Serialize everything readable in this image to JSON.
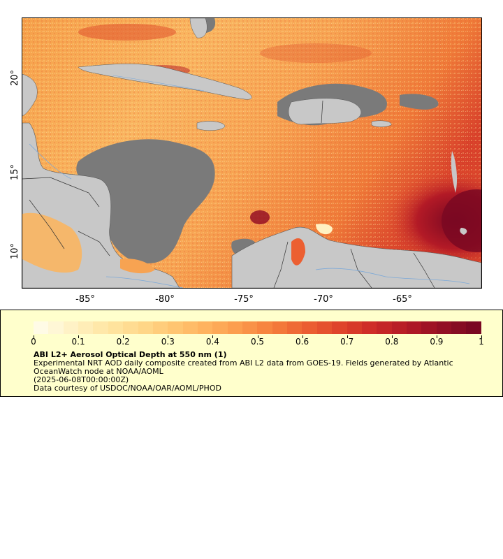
{
  "map": {
    "x_axis_ticks": [
      "-85°",
      "-80°",
      "-75°",
      "-70°",
      "-65°"
    ],
    "y_axis_ticks": [
      "20°",
      "15°",
      "10°"
    ],
    "colors": {
      "land": "#c8c8c8",
      "no_data": "#7a7a7a",
      "rivers": "#7ba8d8",
      "borders": "#555555"
    },
    "hotspot_note": ""
  },
  "legend": {
    "ticks": [
      "0",
      "0.1",
      "0.2",
      "0.3",
      "0.4",
      "0.5",
      "0.6",
      "0.7",
      "0.8",
      "0.9",
      "1"
    ],
    "colormap": [
      "#fffbe6",
      "#fff1c2",
      "#ffe6a3",
      "#ffd88a",
      "#ffc672",
      "#ffb25e",
      "#fb9a4c",
      "#f57d3c",
      "#ec5f31",
      "#df432b",
      "#cc2a27",
      "#b31a26",
      "#951025",
      "#7a0822"
    ],
    "title": "ABI L2+ Aerosol Optical Depth at 550 nm (1)",
    "line1": "Experimental NRT AOD daily composite created from ABI L2 data from GOES-19. Fields generated by Atlantic",
    "line2": "OceanWatch node at NOAA/AOML",
    "line3": "(2025-06-08T00:00:00Z)",
    "line4": "Data courtesy of USDOC/NOAA/OAR/AOML/PHOD"
  }
}
